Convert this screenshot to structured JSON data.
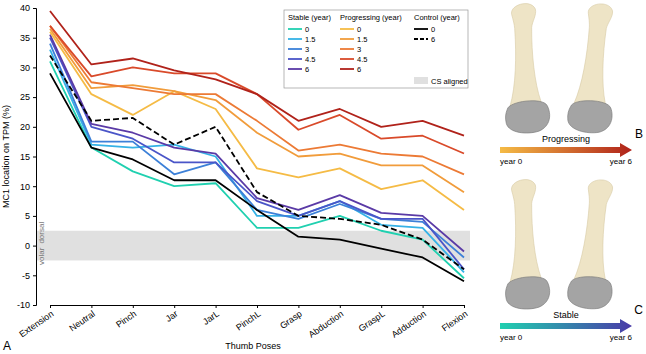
{
  "chart_data": {
    "type": "line",
    "panel_label": "A",
    "x_label": "Thumb Poses",
    "y_label": "MC1 location on TPM (%)",
    "categories": [
      "Extension",
      "Neutral",
      "Pinch",
      "Jar",
      "JarL",
      "PinchL",
      "Grasp",
      "Abduction",
      "GraspL",
      "Adduction",
      "Flexion"
    ],
    "ylim": [
      -10,
      40
    ],
    "yticks": [
      -10,
      -5,
      0,
      5,
      10,
      15,
      20,
      25,
      30,
      35,
      40
    ],
    "grid": false,
    "legend": "upper right",
    "band": {
      "range": [
        -2.5,
        2.5
      ],
      "label": "CS aligned",
      "color": "#e0e0e0",
      "labels": [
        "volar",
        "dorsal"
      ]
    },
    "series": [
      {
        "name": "0",
        "group": "Stable (year)",
        "color": "#20d0b0",
        "line_style": "solid",
        "values": [
          31,
          16.5,
          12.5,
          10,
          10.5,
          3,
          3,
          5,
          2.5,
          1,
          -5.5
        ]
      },
      {
        "name": "1.5",
        "group": "Stable (year)",
        "color": "#35b2e6",
        "line_style": "solid",
        "values": [
          33,
          17,
          16.5,
          17,
          15,
          5,
          5,
          7.5,
          3.5,
          3,
          -4.5
        ]
      },
      {
        "name": "3",
        "group": "Stable (year)",
        "color": "#3c80d8",
        "line_style": "solid",
        "values": [
          34,
          17.5,
          17.5,
          12,
          14,
          6,
          4.5,
          7,
          4.5,
          4,
          -2
        ]
      },
      {
        "name": "4.5",
        "group": "Stable (year)",
        "color": "#4a55c8",
        "line_style": "solid",
        "values": [
          35,
          20,
          18,
          14,
          14,
          7.5,
          5,
          7.5,
          4.5,
          4.5,
          -4
        ]
      },
      {
        "name": "6",
        "group": "Stable (year)",
        "color": "#5a3aa6",
        "line_style": "solid",
        "values": [
          35.5,
          20.5,
          19,
          16.5,
          15.5,
          8,
          6,
          8.5,
          5.5,
          5,
          -1
        ]
      },
      {
        "name": "0",
        "group": "Progressing (year)",
        "color": "#f5bb45",
        "line_style": "solid",
        "values": [
          36,
          25.5,
          22,
          26,
          23,
          13,
          11.5,
          13,
          9.5,
          11,
          6
        ]
      },
      {
        "name": "1.5",
        "group": "Progressing (year)",
        "color": "#f19c3b",
        "line_style": "solid",
        "values": [
          36.5,
          26.5,
          27,
          26,
          24.5,
          19,
          15,
          15.5,
          13.5,
          13.5,
          9
        ]
      },
      {
        "name": "3",
        "group": "Progressing (year)",
        "color": "#ec7a35",
        "line_style": "solid",
        "values": [
          37,
          27.5,
          26.5,
          25.5,
          25.5,
          21,
          16,
          17,
          15.5,
          15,
          12
        ]
      },
      {
        "name": "4.5",
        "group": "Progressing (year)",
        "color": "#d94a2a",
        "line_style": "solid",
        "values": [
          37,
          28.5,
          30,
          29,
          29,
          25.5,
          19.5,
          22,
          18,
          18.5,
          15.5
        ]
      },
      {
        "name": "6",
        "group": "Progressing (year)",
        "color": "#b0221a",
        "line_style": "solid",
        "values": [
          39.5,
          30.5,
          31.5,
          29.5,
          28,
          25.5,
          21,
          23,
          20,
          21,
          18.5
        ]
      },
      {
        "name": "0",
        "group": "Control (year)",
        "color": "#000000",
        "line_style": "solid",
        "values": [
          29,
          16.5,
          14.5,
          11,
          11,
          6,
          1.5,
          1,
          -0.5,
          -2,
          -6
        ]
      },
      {
        "name": "6",
        "group": "Control (year)",
        "color": "#000000",
        "line_style": "dashed",
        "values": [
          32,
          21,
          21.5,
          17,
          20,
          9,
          5,
          4.5,
          3.5,
          1,
          -4
        ]
      }
    ]
  },
  "side_panels": [
    {
      "label": "B",
      "title": "Progressing",
      "start": "year 0",
      "end": "year 6",
      "colors": [
        "#f5bb45",
        "#b0221a"
      ]
    },
    {
      "label": "C",
      "title": "Stable",
      "start": "year 0",
      "end": "year 6",
      "colors": [
        "#20d0b0",
        "#4a3aa8"
      ]
    }
  ]
}
